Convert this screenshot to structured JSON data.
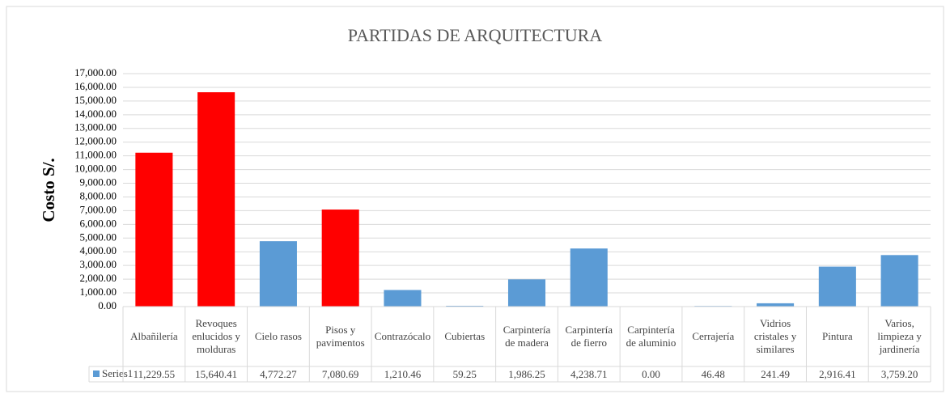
{
  "chart_data": {
    "type": "bar",
    "title": "PARTIDAS DE ARQUITECTURA",
    "y_label": "Costo S/.",
    "categories": [
      "Albañilería",
      "Revoques enlucidos y molduras",
      "Cielo rasos",
      "Pisos y pavimentos",
      "Contrazócalo",
      "Cubiertas",
      "Carpintería de madera",
      "Carpintería de fierro",
      "Carpintería de aluminio",
      "Cerrajería",
      "Vidrios cristales y similares",
      "Pintura",
      "Varios, limpieza y jardinería"
    ],
    "series": [
      {
        "name": "Series1",
        "color": "#5b9bd5",
        "values": [
          11229.55,
          15640.41,
          4772.27,
          7080.69,
          1210.46,
          59.25,
          1986.25,
          4238.71,
          0.0,
          46.48,
          241.49,
          2916.41,
          3759.2
        ],
        "value_labels": [
          "11,229.55",
          "15,640.41",
          "4,772.27",
          "7,080.69",
          "1,210.46",
          "59.25",
          "1,986.25",
          "4,238.71",
          "0.00",
          "46.48",
          "241.49",
          "2,916.41",
          "3,759.20"
        ],
        "colors": [
          "#ff0000",
          "#ff0000",
          "#5b9bd5",
          "#ff0000",
          "#5b9bd5",
          "#5b9bd5",
          "#5b9bd5",
          "#5b9bd5",
          "#5b9bd5",
          "#5b9bd5",
          "#5b9bd5",
          "#5b9bd5",
          "#5b9bd5"
        ]
      }
    ],
    "ylim": [
      0,
      17000
    ],
    "yticks": [
      {
        "value": 0,
        "label": "0.00"
      },
      {
        "value": 1000,
        "label": "1,000.00"
      },
      {
        "value": 2000,
        "label": "2,000.00"
      },
      {
        "value": 3000,
        "label": "3,000.00"
      },
      {
        "value": 4000,
        "label": "4,000.00"
      },
      {
        "value": 5000,
        "label": "5,000.00"
      },
      {
        "value": 6000,
        "label": "6,000.00"
      },
      {
        "value": 7000,
        "label": "7,000.00"
      },
      {
        "value": 8000,
        "label": "8,000.00"
      },
      {
        "value": 9000,
        "label": "9,000.00"
      },
      {
        "value": 10000,
        "label": "10,000.00"
      },
      {
        "value": 11000,
        "label": "11,000.00"
      },
      {
        "value": 12000,
        "label": "12,000.00"
      },
      {
        "value": 13000,
        "label": "13,000.00"
      },
      {
        "value": 14000,
        "label": "14,000.00"
      },
      {
        "value": 15000,
        "label": "15,000.00"
      },
      {
        "value": 16000,
        "label": "16,000.00"
      },
      {
        "value": 17000,
        "label": "17,000.00"
      }
    ],
    "grid": true
  }
}
